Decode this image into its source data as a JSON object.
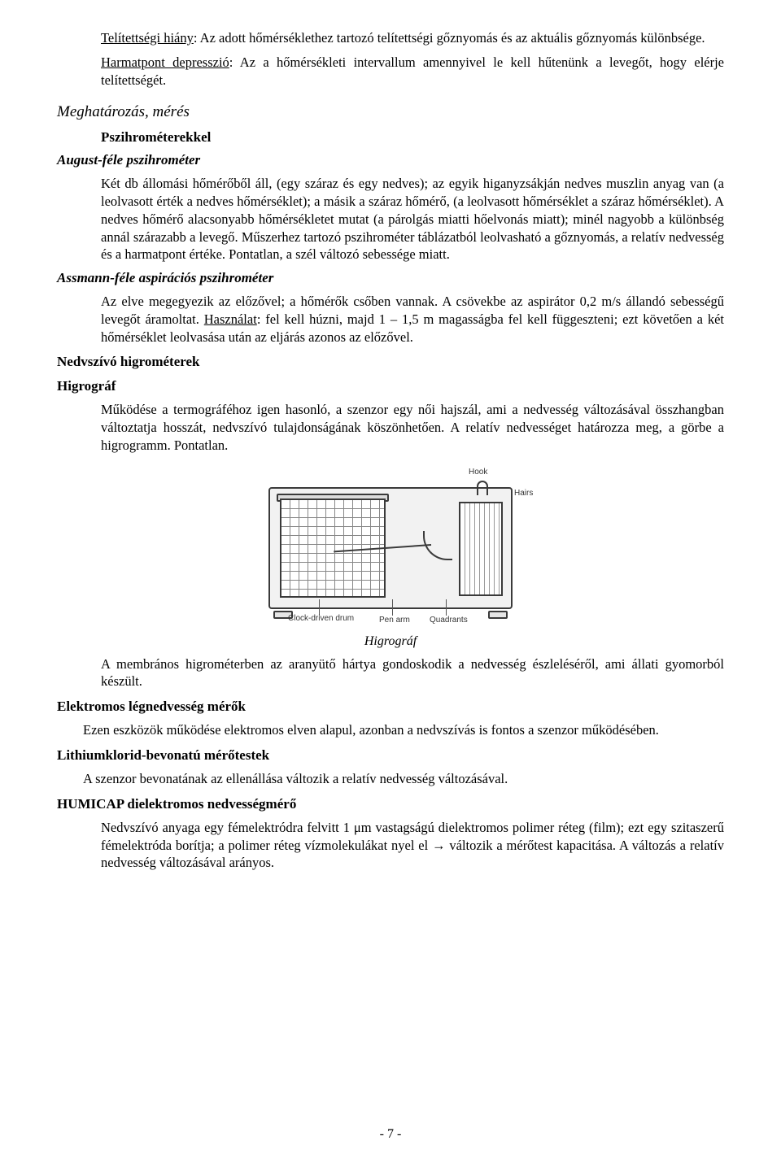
{
  "defs": {
    "telit_label": "Telítettségi hiány",
    "telit_text": ": Az adott hőmérséklethez tartozó telítettségi gőznyomás és az aktuális gőznyomás különbsége.",
    "harmat_label": "Harmatpont depresszió",
    "harmat_text": ": Az a hőmérsékleti intervallum amennyivel le kell hűtenünk a levegőt, hogy elérje telítettségét."
  },
  "h": {
    "meghatarozas": "Meghatározás, mérés",
    "pszi": "Pszihrométerekkel",
    "august": "August-féle pszihrométer",
    "assmann": "Assmann-féle aspirációs pszihrométer",
    "nedvszivo": "Nedvszívó higrométerek",
    "higrograf": "Higrográf",
    "elektromos": "Elektromos légnedvesség mérők",
    "lithium": "Lithiumklorid-bevonatú mérőtestek",
    "humicap": "HUMICAP dielektromos nedvességmérő"
  },
  "p": {
    "august_body": "Két db állomási hőmérőből áll, (egy száraz és egy nedves); az egyik higanyzsákján nedves muszlin anyag van (a leolvasott érték a nedves hőmérséklet); a másik a száraz hőmérő, (a leolvasott hőmérséklet a száraz hőmérséklet). A nedves hőmérő alacsonyabb hőmérsékletet mutat (a párolgás miatti hőelvonás miatt); minél nagyobb a különbség annál szárazabb a levegő. Műszerhez tartozó pszihrométer táblázatból leolvasható a gőznyomás, a relatív nedvesség és a harmatpont értéke. Pontatlan, a szél változó sebessége miatt.",
    "assmann_pre": "Az elve megegyezik az előzővel; a hőmérők csőben vannak. A csövekbe az aspirátor 0,2 m/s állandó sebességű levegőt áramoltat. ",
    "assmann_use_label": "Használat",
    "assmann_post": ": fel kell húzni, majd 1 – 1,5 m magasságba fel kell függeszteni; ezt követően a két hőmérséklet leolvasása után az eljárás azonos az előzővel.",
    "higrograf_body": "Működése a termográféhoz igen hasonló, a szenzor egy női hajszál, ami a nedvesség változásával összhangban változtatja hosszát, nedvszívó tulajdonságának köszönhetően. A relatív nedvességet határozza meg, a görbe a higrogramm. Pontatlan.",
    "membranos": "A membrános higrométerben az aranyütő hártya gondoskodik a nedvesség észleléséről, ami állati gyomorból készült.",
    "elektromos_body": "Ezen eszközök működése elektromos elven alapul, azonban a nedvszívás is fontos a szenzor működésében.",
    "lithium_body": "A szenzor bevonatának az ellenállása változik a relatív nedvesség változásával.",
    "humicap_body": "Nedvszívó anyaga egy fémelektródra felvitt 1 μm vastagságú dielektromos polimer réteg (film); ezt egy szitaszerű fémelektróda borítja; a polimer réteg vízmolekulákat nyel el → változik a mérőtest kapacitása. A változás a relatív nedvesség változásával arányos."
  },
  "fig": {
    "caption": "Higrográf",
    "labels": {
      "hook": "Hook",
      "hairs": "Hairs",
      "clock": "Clock-driven\ndrum",
      "pen": "Pen arm",
      "quad": "Quadrants"
    }
  },
  "page_number": "- 7 -"
}
